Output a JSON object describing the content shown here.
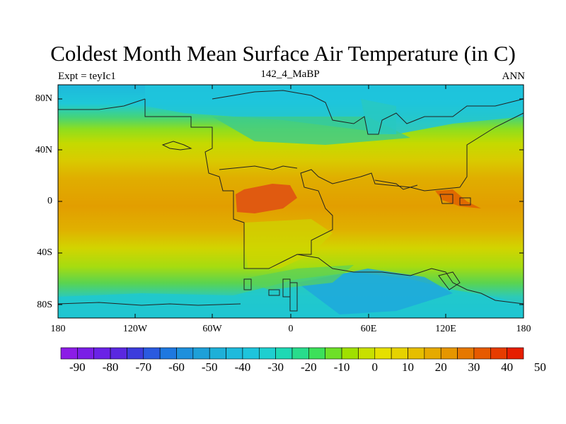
{
  "title": "Coldest Month Mean Surface Air Temperature (in C)",
  "left_label": "Expt = teyIc1",
  "center_label": "142_4_MaBP",
  "right_label": "ANN",
  "lat_ticks": [
    "80N",
    "40N",
    "0",
    "40S",
    "80S"
  ],
  "lon_ticks": [
    "180",
    "120W",
    "60W",
    "0",
    "60E",
    "120E",
    "180"
  ],
  "colorbar": {
    "labels": [
      "-90",
      "-80",
      "-70",
      "-60",
      "-50",
      "-40",
      "-30",
      "-20",
      "-10",
      "0",
      "10",
      "20",
      "30",
      "40",
      "50"
    ],
    "colors": [
      "#8c1ce6",
      "#7a1ee6",
      "#6a22e6",
      "#5a28e0",
      "#3c3cdc",
      "#2a5ae0",
      "#1e78e0",
      "#1e90dc",
      "#1ea0d8",
      "#1eb0d8",
      "#1ebadc",
      "#1ec4dc",
      "#1ecfd0",
      "#1ed8b4",
      "#28dc8c",
      "#3ce05a",
      "#6ee028",
      "#a0e000",
      "#c8e000",
      "#e6e000",
      "#e6d200",
      "#e6be00",
      "#e6aa00",
      "#e69600",
      "#e67800",
      "#e65a00",
      "#e63c00",
      "#e61e00"
    ]
  },
  "colors": {
    "polar_cyan": "#1ec4dc",
    "mid_green": "#5ad050",
    "temperate_yellow": "#c8d800",
    "tropical_orange": "#e0a000",
    "hot_red": "#e05000"
  }
}
